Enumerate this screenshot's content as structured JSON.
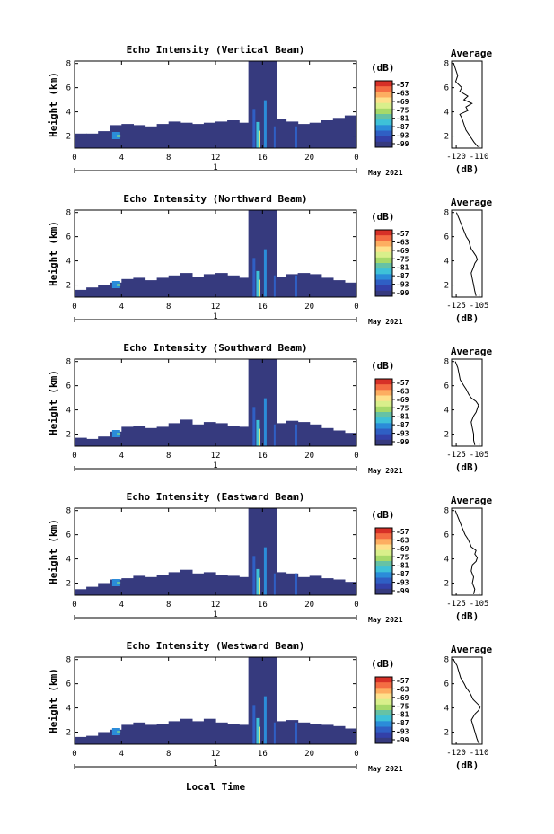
{
  "figure": {
    "xlabel": "Local Time",
    "day_label": "1",
    "date_label": "May 2021",
    "ylabel": "Height (km)",
    "colorbar_unit": "(dB)",
    "colorbar_ticks": [
      "-57",
      "-63",
      "-69",
      "-75",
      "-81",
      "-87",
      "-93",
      "-99"
    ],
    "colorbar_colors": [
      "#d73027",
      "#f46d43",
      "#fdae61",
      "#fee08b",
      "#d9ef8b",
      "#a6d96a",
      "#66c2a5",
      "#3ec1d8",
      "#2b8cd9",
      "#2f5fc4",
      "#3340a8",
      "#363a7e"
    ]
  },
  "chart_data": [
    {
      "type": "heatmap",
      "title": "Echo Intensity (Vertical Beam)",
      "xlabel": "Local Time",
      "ylabel": "Height (km)",
      "xticks": [
        "0",
        "4",
        "8",
        "12",
        "16",
        "20",
        "0"
      ],
      "yticks": [
        "2",
        "4",
        "6",
        "8"
      ],
      "xlim": [
        0,
        24
      ],
      "ylim": [
        1,
        8.2
      ],
      "colorbar": {
        "label": "(dB)",
        "ticks": [
          -57,
          -63,
          -69,
          -75,
          -81,
          -87,
          -93,
          -99
        ]
      },
      "echo_top_km": [
        2.2,
        2.2,
        2.4,
        2.9,
        3.0,
        2.9,
        2.8,
        3.0,
        3.2,
        3.1,
        3.0,
        3.1,
        3.2,
        3.3,
        3.1,
        3.2,
        3.3,
        3.4,
        3.2,
        3.0,
        3.1,
        3.3,
        3.5,
        3.7
      ],
      "rain_interval_h": [
        14.8,
        17.2
      ],
      "profile": {
        "title": "Average",
        "xlabel": "(dB)",
        "xticks": [
          "-120",
          "-110"
        ],
        "xlim": [
          -123,
          -108
        ],
        "yticks": [
          "2",
          "4",
          "6",
          "8"
        ],
        "height_km": [
          1.1,
          1.5,
          2.0,
          2.5,
          3.0,
          3.5,
          3.8,
          4.1,
          4.4,
          4.7,
          5.0,
          5.3,
          5.7,
          6.0,
          6.5,
          7.0,
          7.5,
          8.0
        ],
        "db": [
          -110,
          -112,
          -114,
          -116,
          -117,
          -118,
          -119,
          -115,
          -116,
          -113,
          -117,
          -115,
          -119,
          -118,
          -121,
          -120,
          -121,
          -122
        ]
      }
    },
    {
      "type": "heatmap",
      "title": "Echo Intensity (Northward Beam)",
      "xlabel": "Local Time",
      "ylabel": "Height (km)",
      "xticks": [
        "0",
        "4",
        "8",
        "12",
        "16",
        "20",
        "0"
      ],
      "yticks": [
        "2",
        "4",
        "6",
        "8"
      ],
      "xlim": [
        0,
        24
      ],
      "ylim": [
        1,
        8.2
      ],
      "colorbar": {
        "label": "(dB)",
        "ticks": [
          -57,
          -63,
          -69,
          -75,
          -81,
          -87,
          -93,
          -99
        ]
      },
      "echo_top_km": [
        1.6,
        1.8,
        2.0,
        2.2,
        2.5,
        2.6,
        2.4,
        2.6,
        2.8,
        3.0,
        2.7,
        2.9,
        3.0,
        2.8,
        2.6,
        2.7,
        2.5,
        2.7,
        2.9,
        3.0,
        2.9,
        2.6,
        2.4,
        2.2
      ],
      "rain_interval_h": [
        14.8,
        17.2
      ],
      "profile": {
        "title": "Average",
        "xlabel": "(dB)",
        "xticks": [
          "-125",
          "-105"
        ],
        "xlim": [
          -128,
          -103
        ],
        "yticks": [
          "2",
          "4",
          "6",
          "8"
        ],
        "height_km": [
          1.1,
          1.5,
          2.0,
          2.5,
          3.0,
          3.5,
          3.8,
          4.1,
          4.4,
          4.7,
          5.0,
          5.3,
          5.7,
          6.0,
          6.5,
          7.0,
          7.5,
          8.0
        ],
        "db": [
          -108,
          -109,
          -110,
          -111,
          -112,
          -110,
          -109,
          -107,
          -108,
          -110,
          -112,
          -113,
          -114,
          -116,
          -118,
          -120,
          -122,
          -124
        ]
      }
    },
    {
      "type": "heatmap",
      "title": "Echo Intensity (Southward Beam)",
      "xlabel": "Local Time",
      "ylabel": "Height (km)",
      "xticks": [
        "0",
        "4",
        "8",
        "12",
        "16",
        "20",
        "0"
      ],
      "yticks": [
        "2",
        "4",
        "6",
        "8"
      ],
      "xlim": [
        0,
        24
      ],
      "ylim": [
        1,
        8.2
      ],
      "colorbar": {
        "label": "(dB)",
        "ticks": [
          -57,
          -63,
          -69,
          -75,
          -81,
          -87,
          -93,
          -99
        ]
      },
      "echo_top_km": [
        1.7,
        1.6,
        1.8,
        2.2,
        2.6,
        2.7,
        2.5,
        2.6,
        2.9,
        3.2,
        2.8,
        3.0,
        2.9,
        2.7,
        2.6,
        2.8,
        2.5,
        2.9,
        3.1,
        3.0,
        2.8,
        2.5,
        2.3,
        2.1
      ],
      "rain_interval_h": [
        14.8,
        17.2
      ],
      "profile": {
        "title": "Average",
        "xlabel": "(dB)",
        "xticks": [
          "-125",
          "-105"
        ],
        "xlim": [
          -128,
          -103
        ],
        "yticks": [
          "2",
          "4",
          "6",
          "8"
        ],
        "height_km": [
          1.1,
          1.5,
          2.0,
          2.5,
          3.0,
          3.5,
          3.8,
          4.1,
          4.4,
          4.7,
          5.0,
          5.3,
          5.7,
          6.0,
          6.5,
          7.0,
          7.5,
          8.0
        ],
        "db": [
          -109,
          -110,
          -110,
          -111,
          -112,
          -110,
          -108,
          -107,
          -106,
          -108,
          -112,
          -114,
          -116,
          -118,
          -121,
          -122,
          -123,
          -125
        ]
      }
    },
    {
      "type": "heatmap",
      "title": "Echo Intensity (Eastward Beam)",
      "xlabel": "Local Time",
      "ylabel": "Height (km)",
      "xticks": [
        "0",
        "4",
        "8",
        "12",
        "16",
        "20",
        "0"
      ],
      "yticks": [
        "2",
        "4",
        "6",
        "8"
      ],
      "xlim": [
        0,
        24
      ],
      "ylim": [
        1,
        8.2
      ],
      "colorbar": {
        "label": "(dB)",
        "ticks": [
          -57,
          -63,
          -69,
          -75,
          -81,
          -87,
          -93,
          -99
        ]
      },
      "echo_top_km": [
        1.5,
        1.7,
        2.0,
        2.3,
        2.4,
        2.6,
        2.5,
        2.7,
        2.9,
        3.1,
        2.8,
        2.9,
        2.7,
        2.6,
        2.5,
        2.7,
        2.6,
        2.9,
        2.8,
        2.5,
        2.6,
        2.4,
        2.3,
        2.1
      ],
      "rain_interval_h": [
        14.8,
        17.2
      ],
      "profile": {
        "title": "Average",
        "xlabel": "(dB)",
        "xticks": [
          "-125",
          "-105"
        ],
        "xlim": [
          -128,
          -103
        ],
        "yticks": [
          "2",
          "4",
          "6",
          "8"
        ],
        "height_km": [
          1.1,
          1.5,
          2.0,
          2.5,
          3.0,
          3.5,
          3.8,
          4.1,
          4.4,
          4.7,
          5.0,
          5.3,
          5.7,
          6.0,
          6.5,
          7.0,
          7.5,
          8.0
        ],
        "db": [
          -110,
          -109,
          -111,
          -110,
          -112,
          -111,
          -108,
          -107,
          -109,
          -108,
          -112,
          -113,
          -115,
          -117,
          -119,
          -121,
          -123,
          -125
        ]
      }
    },
    {
      "type": "heatmap",
      "title": "Echo Intensity (Westward Beam)",
      "xlabel": "Local Time",
      "ylabel": "Height (km)",
      "xticks": [
        "0",
        "4",
        "8",
        "12",
        "16",
        "20",
        "0"
      ],
      "yticks": [
        "2",
        "4",
        "6",
        "8"
      ],
      "xlim": [
        0,
        24
      ],
      "ylim": [
        1,
        8.2
      ],
      "colorbar": {
        "label": "(dB)",
        "ticks": [
          -57,
          -63,
          -69,
          -75,
          -81,
          -87,
          -93,
          -99
        ]
      },
      "echo_top_km": [
        1.6,
        1.7,
        2.0,
        2.2,
        2.6,
        2.8,
        2.6,
        2.7,
        2.9,
        3.1,
        2.9,
        3.1,
        2.8,
        2.7,
        2.6,
        2.8,
        2.6,
        2.9,
        3.0,
        2.8,
        2.7,
        2.6,
        2.5,
        2.3
      ],
      "rain_interval_h": [
        14.8,
        17.2
      ],
      "profile": {
        "title": "Average",
        "xlabel": "(dB)",
        "xticks": [
          "-120",
          "-110"
        ],
        "xlim": [
          -124,
          -107
        ],
        "yticks": [
          "2",
          "4",
          "6",
          "8"
        ],
        "height_km": [
          1.1,
          1.5,
          2.0,
          2.5,
          3.0,
          3.5,
          3.8,
          4.1,
          4.4,
          4.7,
          5.0,
          5.3,
          5.7,
          6.0,
          6.5,
          7.0,
          7.5,
          8.0
        ],
        "db": [
          -109,
          -110,
          -111,
          -112,
          -113,
          -111,
          -109,
          -108,
          -110,
          -112,
          -113,
          -114,
          -116,
          -117,
          -119,
          -120,
          -121,
          -123
        ]
      }
    }
  ]
}
